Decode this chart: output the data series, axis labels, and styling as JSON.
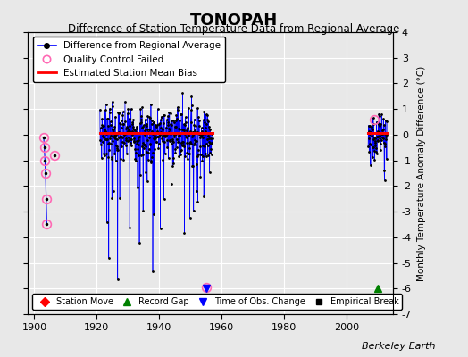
{
  "title": "TONOPAH",
  "subtitle": "Difference of Station Temperature Data from Regional Average",
  "ylabel": "Monthly Temperature Anomaly Difference (°C)",
  "credit": "Berkeley Earth",
  "xlim": [
    1898,
    2015
  ],
  "ylim": [
    -7,
    4
  ],
  "yticks": [
    -7,
    -6,
    -5,
    -4,
    -3,
    -2,
    -1,
    0,
    1,
    2,
    3,
    4
  ],
  "xticks": [
    1900,
    1920,
    1940,
    1960,
    1980,
    2000
  ],
  "bg_color": "#e8e8e8",
  "grid_color": "white",
  "qc_color": "#ff69b4",
  "bias_y": 0.05,
  "bias_x1_start": 1921,
  "bias_x1_end": 1957,
  "bias_x2_start": 2007,
  "bias_x2_end": 2013,
  "time_of_obs_x": 1955,
  "time_of_obs_y": -6.0,
  "record_gap_x": 2010,
  "record_gap_y": -6.0,
  "main_data_start": 1921,
  "main_data_end": 1957,
  "late_data_start": 2007,
  "late_data_end": 2013,
  "early_x": [
    1903.0,
    1903.2,
    1903.4,
    1903.6,
    1903.8,
    1904.0
  ],
  "early_y": [
    -0.1,
    -0.5,
    -1.0,
    -1.5,
    -2.5,
    -3.5
  ],
  "early_qc_all": true,
  "side_point_x": 1906.5,
  "side_point_y": -0.8,
  "seed": 7,
  "n_main": 430,
  "n_late": 72
}
